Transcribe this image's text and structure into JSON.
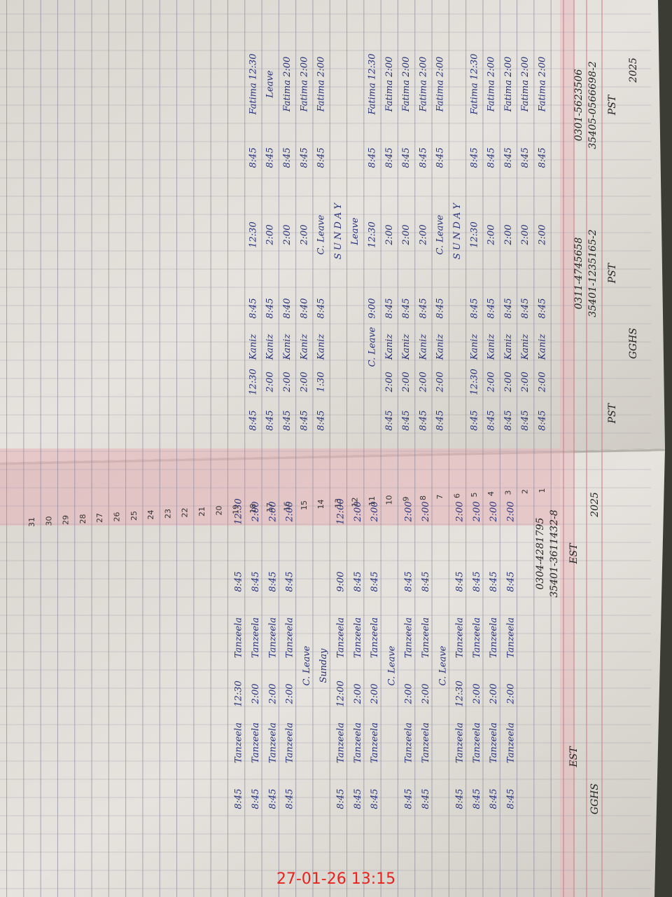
{
  "pages": [
    {
      "year": "2025",
      "school": "GGHS",
      "teachers": [
        {
          "post": "PST",
          "cnic": "35405-0566698-2",
          "phone": "0301-5623506"
        },
        {
          "post": "PST",
          "cnic": "35401-1235165-2",
          "phone": "0311-4745658"
        },
        {
          "post": "PST"
        }
      ],
      "rows": [
        [
          "Fatima 2:00",
          "8:45",
          "2:00",
          "8:45",
          "Kaniz",
          "2:00",
          "8:45"
        ],
        [
          "Fatima 2:00",
          "8:45",
          "2:00",
          "8:45",
          "Kaniz",
          "2:00",
          "8:45"
        ],
        [
          "Fatima 2:00",
          "8:45",
          "2:00",
          "8:45",
          "Kaniz",
          "2:00",
          "8:45"
        ],
        [
          "Fatima 2:00",
          "8:45",
          "2:00",
          "8:45",
          "Kaniz",
          "2:00",
          "8:45"
        ],
        [
          "Fatima 12:30",
          "8:45",
          "12:30",
          "8:45",
          "Kaniz",
          "12:30",
          "8:45"
        ],
        "S U N D A Y",
        [
          "Fatima 2:00",
          "8:45",
          "C. Leave",
          "8:45",
          "Kaniz",
          "2:00",
          "8:45"
        ],
        [
          "Fatima 2:00",
          "8:45",
          "2:00",
          "8:45",
          "Kaniz",
          "2:00",
          "8:45"
        ],
        [
          "Fatima 2:00",
          "8:45",
          "2:00",
          "8:45",
          "Kaniz",
          "2:00",
          "8:45"
        ],
        [
          "Fatima 2:00",
          "8:45",
          "2:00",
          "8:45",
          "Kaniz",
          "2:00",
          "8:45"
        ],
        [
          "Fatima 12:30",
          "8:45",
          "12:30",
          "9:00",
          "C. Leave"
        ],
        "Leave",
        "S U N D A Y",
        [
          "Fatima 2:00",
          "8:45",
          "C. Leave",
          "8:45",
          "Kaniz",
          "1:30",
          "8:45"
        ],
        [
          "Fatima 2:00",
          "8:45",
          "2:00",
          "8:40",
          "Kaniz",
          "2:00",
          "8:45"
        ],
        [
          "Fatima 2:00",
          "8:45",
          "2:00",
          "8:40",
          "Kaniz",
          "2:00",
          "8:45"
        ],
        [
          "Leave",
          "8:45",
          "2:00",
          "8:45",
          "Kaniz",
          "2:00",
          "8:45"
        ],
        [
          "Fatima 12:30",
          "8:45",
          "12:30",
          "8:45",
          "Kaniz",
          "12:30",
          "8:45"
        ]
      ]
    },
    {
      "year": "2025",
      "school": "GGHS",
      "teachers": [
        {
          "post": "EST",
          "cnic": "35401-3611432-8",
          "phone": "0304-4281795"
        },
        {
          "post": "EST"
        }
      ],
      "rows": [
        [
          "2:00",
          "8:45",
          "Tanzeela",
          "2:00",
          "Tanzeela",
          "8:45"
        ],
        [
          "2:00",
          "8:45",
          "Tanzeela",
          "2:00",
          "Tanzeela",
          "8:45"
        ],
        [
          "2:00",
          "8:45",
          "Tanzeela",
          "2:00",
          "Tanzeela",
          "8:45"
        ],
        [
          "2:00",
          "8:45",
          "Tanzeela",
          "12:30",
          "Tanzeela",
          "8:45"
        ],
        "C. Leave",
        [
          "2:00",
          "8:45",
          "Tanzeela",
          "2:00",
          "Tanzeela",
          "8:45"
        ],
        [
          "2:00",
          "8:45",
          "Tanzeela",
          "2:00",
          "Tanzeela",
          "8:45"
        ],
        "C. Leave",
        [
          "2:00",
          "8:45",
          "Tanzeela",
          "2:00",
          "Tanzeela",
          "8:45"
        ],
        [
          "2:00",
          "8:45",
          "Tanzeela",
          "2:00",
          "Tanzeela",
          "8:45"
        ],
        [
          "12:00",
          "9:00",
          "Tanzeela",
          "12:00",
          "Tanzeela",
          "8:45"
        ],
        "Sunday",
        "C. Leave",
        [
          "2:00",
          "8:45",
          "Tanzeela",
          "2:00",
          "Tanzeela",
          "8:45"
        ],
        [
          "2:00",
          "8:45",
          "Tanzeela",
          "2:00",
          "Tanzeela",
          "8:45"
        ],
        [
          "2:00",
          "8:45",
          "Tanzeela",
          "2:00",
          "Tanzeela",
          "8:45"
        ],
        [
          "12:30",
          "8:45",
          "Tanzeela",
          "12:30",
          "Tanzeela",
          "8:45"
        ]
      ]
    }
  ],
  "day_numbers": [
    "1",
    "2",
    "3",
    "4",
    "5",
    "6",
    "7",
    "8",
    "9",
    "10",
    "11",
    "12",
    "13",
    "14",
    "15",
    "16",
    "17",
    "18",
    "19",
    "20",
    "21",
    "22",
    "23",
    "24",
    "25",
    "26",
    "27",
    "28",
    "29",
    "30",
    "31"
  ],
  "timestamp": "27-01-26 13:15"
}
